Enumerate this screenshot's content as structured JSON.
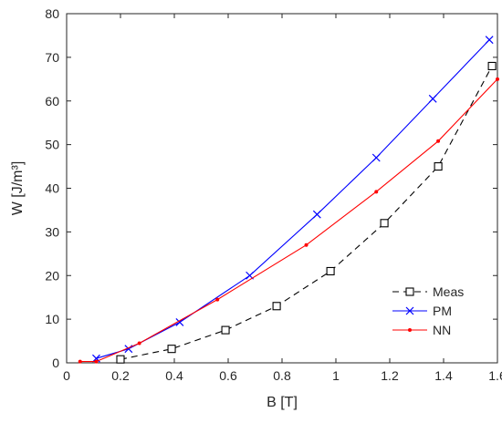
{
  "chart_data": {
    "type": "line",
    "xlabel": "B [T]",
    "ylabel": "W [J/m³]",
    "xlim": [
      0,
      1.6
    ],
    "ylim": [
      0,
      80
    ],
    "xticks": [
      "0",
      "0.2",
      "0.4",
      "0.6",
      "0.8",
      "1",
      "1.2",
      "1.4",
      "1.6"
    ],
    "yticks": [
      "0",
      "10",
      "20",
      "30",
      "40",
      "50",
      "60",
      "70",
      "80"
    ],
    "grid": false,
    "legend_position": "lower-right",
    "series": [
      {
        "name": "Meas",
        "color": "#000000",
        "line_style": "dashed",
        "marker": "square",
        "x": [
          0.2,
          0.39,
          0.59,
          0.78,
          0.98,
          1.18,
          1.38,
          1.58
        ],
        "y": [
          0.8,
          3.2,
          7.5,
          13,
          21,
          32,
          45,
          68
        ]
      },
      {
        "name": "PM",
        "color": "#0000ff",
        "line_style": "solid",
        "marker": "x",
        "x": [
          0.11,
          0.23,
          0.42,
          0.68,
          0.93,
          1.15,
          1.36,
          1.57
        ],
        "y": [
          1,
          3.2,
          9.3,
          20,
          34,
          47,
          60.5,
          74
        ]
      },
      {
        "name": "NN",
        "color": "#ff0000",
        "line_style": "solid",
        "marker": "dot",
        "x": [
          0.05,
          0.11,
          0.27,
          0.56,
          0.89,
          1.15,
          1.38,
          1.6
        ],
        "y": [
          0.3,
          0.3,
          4.5,
          14.5,
          27,
          39.2,
          50.8,
          65
        ]
      }
    ]
  }
}
